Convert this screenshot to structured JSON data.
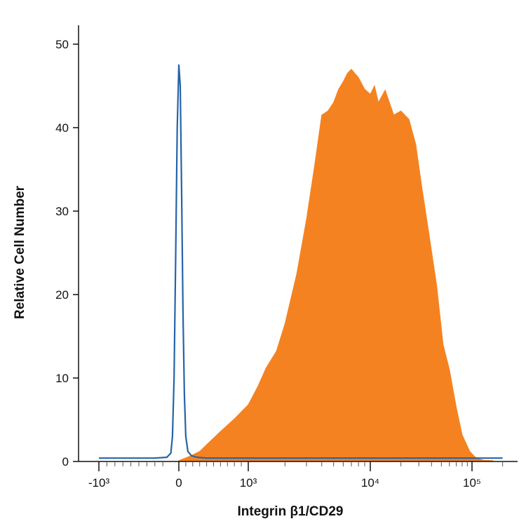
{
  "chart_data": {
    "type": "area",
    "title": "",
    "xlabel": "Integrin β1/CD29",
    "ylabel": "Relative Cell Number",
    "x_scale": "biexponential",
    "x_tick_labels": [
      "-10³",
      "0",
      "10³",
      "10⁴",
      "10⁵"
    ],
    "x_tick_values": [
      -1000,
      0,
      1000,
      10000,
      100000
    ],
    "ylim": [
      0,
      52
    ],
    "y_ticks": [
      0,
      10,
      20,
      30,
      40,
      50
    ],
    "grid": false,
    "legend": "none",
    "series": [
      {
        "kind": "filled",
        "color": "#F58220",
        "points": [
          [
            0,
            0.1
          ],
          [
            150,
            0.6
          ],
          [
            300,
            1.2
          ],
          [
            450,
            2.4
          ],
          [
            600,
            3.6
          ],
          [
            800,
            5.1
          ],
          [
            1000,
            6.8
          ],
          [
            1200,
            9.0
          ],
          [
            1400,
            11.2
          ],
          [
            1700,
            13.2
          ],
          [
            2000,
            16.5
          ],
          [
            2500,
            22.5
          ],
          [
            3000,
            29.0
          ],
          [
            3500,
            35.5
          ],
          [
            4000,
            41.5
          ],
          [
            4500,
            42.0
          ],
          [
            5000,
            43.0
          ],
          [
            5500,
            44.6
          ],
          [
            6000,
            45.5
          ],
          [
            6500,
            46.5
          ],
          [
            7000,
            47.0
          ],
          [
            8000,
            46.0
          ],
          [
            9000,
            44.6
          ],
          [
            10000,
            44.0
          ],
          [
            11000,
            45.0
          ],
          [
            12000,
            43.0
          ],
          [
            14000,
            44.5
          ],
          [
            17000,
            41.5
          ],
          [
            20000,
            42.0
          ],
          [
            24000,
            41.0
          ],
          [
            28000,
            38.0
          ],
          [
            32000,
            33.0
          ],
          [
            38000,
            27.0
          ],
          [
            45000,
            21.0
          ],
          [
            52000,
            14.0
          ],
          [
            60000,
            11.0
          ],
          [
            70000,
            6.5
          ],
          [
            80000,
            3.2
          ],
          [
            95000,
            1.2
          ],
          [
            110000,
            0.4
          ],
          [
            130000,
            0.15
          ],
          [
            160000,
            0.1
          ]
        ]
      },
      {
        "kind": "line",
        "color": "#2563A9",
        "points": [
          [
            -1000,
            0.4
          ],
          [
            -300,
            0.4
          ],
          [
            -150,
            0.5
          ],
          [
            -100,
            1.0
          ],
          [
            -80,
            3.0
          ],
          [
            -60,
            10.0
          ],
          [
            -40,
            24.0
          ],
          [
            -20,
            40.0
          ],
          [
            0,
            47.5
          ],
          [
            20,
            45.0
          ],
          [
            40,
            32.0
          ],
          [
            60,
            18.0
          ],
          [
            80,
            8.0
          ],
          [
            100,
            3.0
          ],
          [
            130,
            1.2
          ],
          [
            180,
            0.7
          ],
          [
            260,
            0.5
          ],
          [
            400,
            0.4
          ],
          [
            1000,
            0.4
          ],
          [
            10000,
            0.4
          ],
          [
            100000,
            0.4
          ],
          [
            200000,
            0.4
          ]
        ]
      }
    ]
  }
}
